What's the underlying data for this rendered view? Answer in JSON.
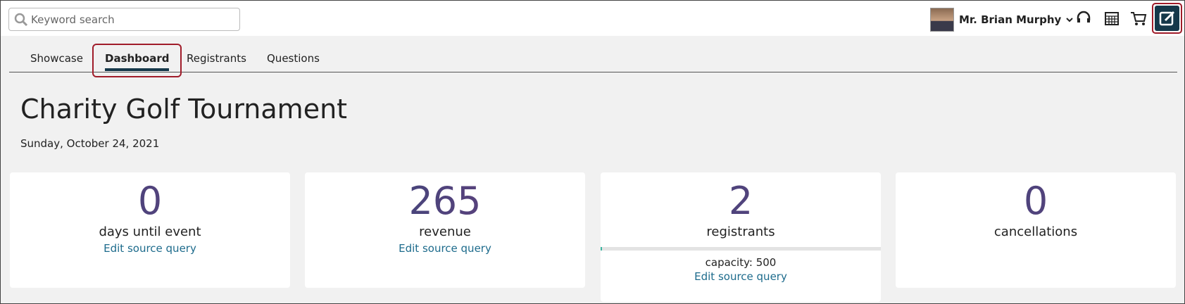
{
  "header": {
    "search_placeholder": "Keyword search",
    "user_name": "Mr. Brian Murphy"
  },
  "tabs": [
    "Showcase",
    "Dashboard",
    "Registrants",
    "Questions"
  ],
  "event": {
    "title": "Charity Golf Tournament",
    "date": "Sunday, October 24, 2021"
  },
  "cards": [
    {
      "value": 0,
      "label": "days until event",
      "link": "Edit source query"
    },
    {
      "value": 265,
      "label": "revenue",
      "link": "Edit source query"
    },
    {
      "value": 2,
      "label": "registrants",
      "capacity_label": "capacity:",
      "capacity": 500,
      "link": "Edit source query"
    },
    {
      "value": 0,
      "label": "cancellations"
    }
  ]
}
